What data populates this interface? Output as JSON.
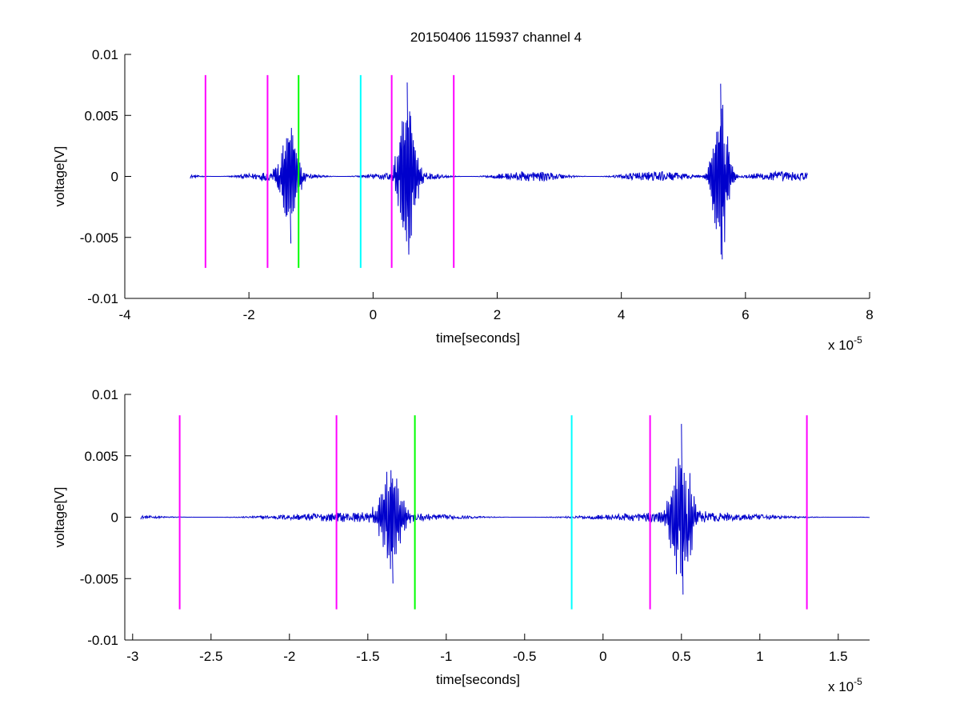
{
  "figure": {
    "title": "20150406 115937 channel 4",
    "background": "#ffffff"
  },
  "chart_data": [
    {
      "type": "line",
      "title": "20150406 115937 channel 4",
      "xlabel": "time[seconds]",
      "ylabel": "voltage[V]",
      "x_multiplier_label": "x 10",
      "x_multiplier_exponent": "-5",
      "x_scale": 1e-05,
      "xlim": [
        -4,
        8
      ],
      "ylim": [
        -0.01,
        0.01
      ],
      "xticks": [
        -4,
        -2,
        0,
        2,
        4,
        6,
        8
      ],
      "xtick_labels": [
        "-4",
        "-2",
        "0",
        "2",
        "4",
        "6",
        "8"
      ],
      "yticks": [
        -0.01,
        -0.005,
        0,
        0.005,
        0.01
      ],
      "ytick_labels": [
        "-0.01",
        "-0.005",
        "0",
        "0.005",
        "0.01"
      ],
      "grid": false,
      "series": [
        {
          "color": "#0000cc",
          "x_range": [
            -2.95,
            7.0
          ],
          "baseline": 0,
          "noise_amplitude": 0.0004,
          "bursts": [
            {
              "center": -1.35,
              "width": 0.35,
              "amplitude": 0.0045,
              "min": -0.0055,
              "max": 0.0028
            },
            {
              "center": 0.55,
              "width": 0.35,
              "amplitude": 0.0065,
              "min": -0.0064,
              "max": 0.0077
            },
            {
              "center": 5.6,
              "width": 0.3,
              "amplitude": 0.007,
              "min": -0.0068,
              "max": 0.0076
            }
          ]
        }
      ],
      "markers": [
        {
          "x": -2.7,
          "color": "#ff00ff",
          "ymin": -0.0075,
          "ymax": 0.0083
        },
        {
          "x": -1.7,
          "color": "#ff00ff",
          "ymin": -0.0075,
          "ymax": 0.0083
        },
        {
          "x": -1.2,
          "color": "#00ff00",
          "ymin": -0.0075,
          "ymax": 0.0083
        },
        {
          "x": -0.2,
          "color": "#00ffff",
          "ymin": -0.0075,
          "ymax": 0.0083
        },
        {
          "x": 0.3,
          "color": "#ff00ff",
          "ymin": -0.0075,
          "ymax": 0.0083
        },
        {
          "x": 1.3,
          "color": "#ff00ff",
          "ymin": -0.0075,
          "ymax": 0.0083
        }
      ]
    },
    {
      "type": "line",
      "title": "",
      "xlabel": "time[seconds]",
      "ylabel": "voltage[V]",
      "x_multiplier_label": "x 10",
      "x_multiplier_exponent": "-5",
      "x_scale": 1e-05,
      "xlim": [
        -3.05,
        1.7
      ],
      "ylim": [
        -0.01,
        0.01
      ],
      "xticks": [
        -3,
        -2.5,
        -2,
        -1.5,
        -1,
        -0.5,
        0,
        0.5,
        1,
        1.5
      ],
      "xtick_labels": [
        "-3",
        "-2.5",
        "-2",
        "-1.5",
        "-1",
        "-0.5",
        "0",
        "0.5",
        "1",
        "1.5"
      ],
      "yticks": [
        -0.01,
        -0.005,
        0,
        0.005,
        0.01
      ],
      "ytick_labels": [
        "-0.01",
        "-0.005",
        "0",
        "0.005",
        "0.01"
      ],
      "grid": false,
      "series": [
        {
          "color": "#0000cc",
          "x_range": [
            -2.95,
            1.7
          ],
          "baseline": 0,
          "noise_amplitude": 0.0004,
          "bursts": [
            {
              "center": -1.35,
              "width": 0.18,
              "amplitude": 0.0045,
              "min": -0.0054,
              "max": 0.0028
            },
            {
              "center": 0.5,
              "width": 0.17,
              "amplitude": 0.0065,
              "min": -0.0063,
              "max": 0.0076
            }
          ]
        }
      ],
      "markers": [
        {
          "x": -2.7,
          "color": "#ff00ff",
          "ymin": -0.0075,
          "ymax": 0.0083
        },
        {
          "x": -1.7,
          "color": "#ff00ff",
          "ymin": -0.0075,
          "ymax": 0.0083
        },
        {
          "x": -1.2,
          "color": "#00ff00",
          "ymin": -0.0075,
          "ymax": 0.0083
        },
        {
          "x": -0.2,
          "color": "#00ffff",
          "ymin": -0.0075,
          "ymax": 0.0083
        },
        {
          "x": 0.3,
          "color": "#ff00ff",
          "ymin": -0.0075,
          "ymax": 0.0083
        },
        {
          "x": 1.3,
          "color": "#ff00ff",
          "ymin": -0.0075,
          "ymax": 0.0083
        }
      ]
    }
  ]
}
